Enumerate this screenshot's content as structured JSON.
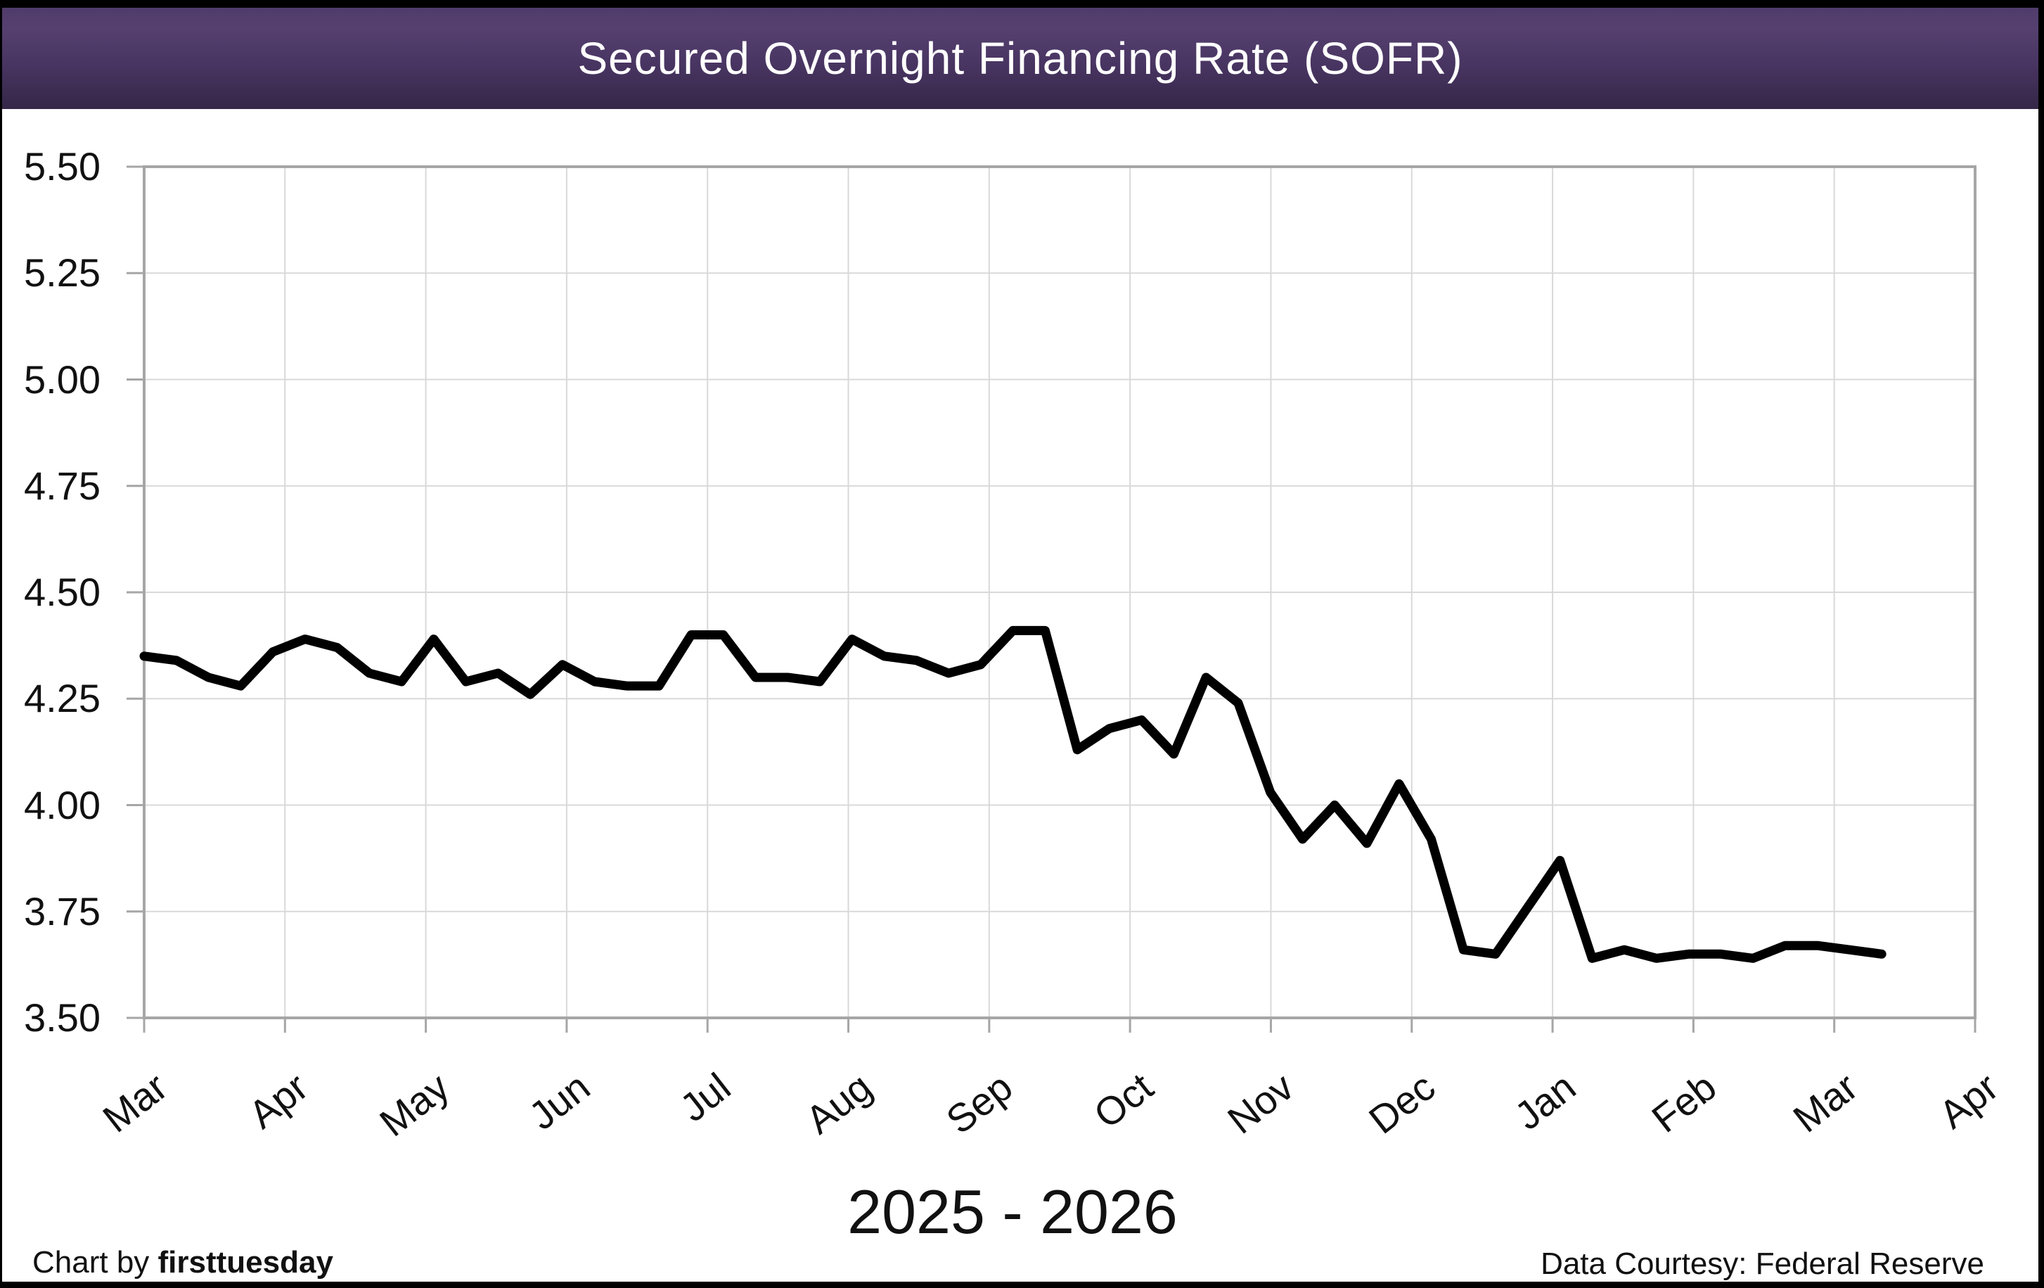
{
  "header": {
    "title": "Secured Overnight Financing Rate (SOFR)"
  },
  "footer": {
    "credit_left_prefix": "Chart by ",
    "credit_left_brand": "firsttuesday",
    "credit_right": "Data Courtesy: Federal Reserve"
  },
  "chart_data": {
    "type": "line",
    "title": "Secured Overnight Financing Rate (SOFR)",
    "xlabel": "2025 - 2026",
    "ylabel": "",
    "ylim": [
      3.5,
      5.5
    ],
    "y_tick_step": 0.25,
    "y_tick_labels": [
      "5.50",
      "5.25",
      "5.00",
      "4.75",
      "4.50",
      "4.25",
      "4.00",
      "3.75",
      "3.50"
    ],
    "x_tick_labels": [
      "Mar",
      "Apr",
      "May",
      "Jun",
      "Jul",
      "Aug",
      "Sep",
      "Oct",
      "Nov",
      "Dec",
      "Jan",
      "Feb",
      "Mar",
      "Apr"
    ],
    "grid": true,
    "legend": false,
    "frequency": "weekly",
    "x_span_fraction": 0.949,
    "series": [
      {
        "name": "SOFR",
        "values": [
          4.35,
          4.34,
          4.3,
          4.28,
          4.36,
          4.39,
          4.37,
          4.31,
          4.29,
          4.39,
          4.29,
          4.31,
          4.26,
          4.33,
          4.29,
          4.28,
          4.28,
          4.4,
          4.4,
          4.3,
          4.3,
          4.29,
          4.39,
          4.35,
          4.34,
          4.31,
          4.33,
          4.41,
          4.41,
          4.13,
          4.18,
          4.2,
          4.12,
          4.3,
          4.24,
          4.03,
          3.92,
          4.0,
          3.91,
          4.05,
          3.92,
          3.66,
          3.65,
          3.76,
          3.87,
          3.64,
          3.66,
          3.64,
          3.65,
          3.65,
          3.64,
          3.67,
          3.67,
          3.66,
          3.65
        ]
      }
    ],
    "colors": {
      "line": "#000000",
      "grid": "#d9d9d9",
      "axis_border": "#a6a6a6",
      "title_bar_purple": "#4a3763",
      "title_text": "#ffffff"
    }
  }
}
